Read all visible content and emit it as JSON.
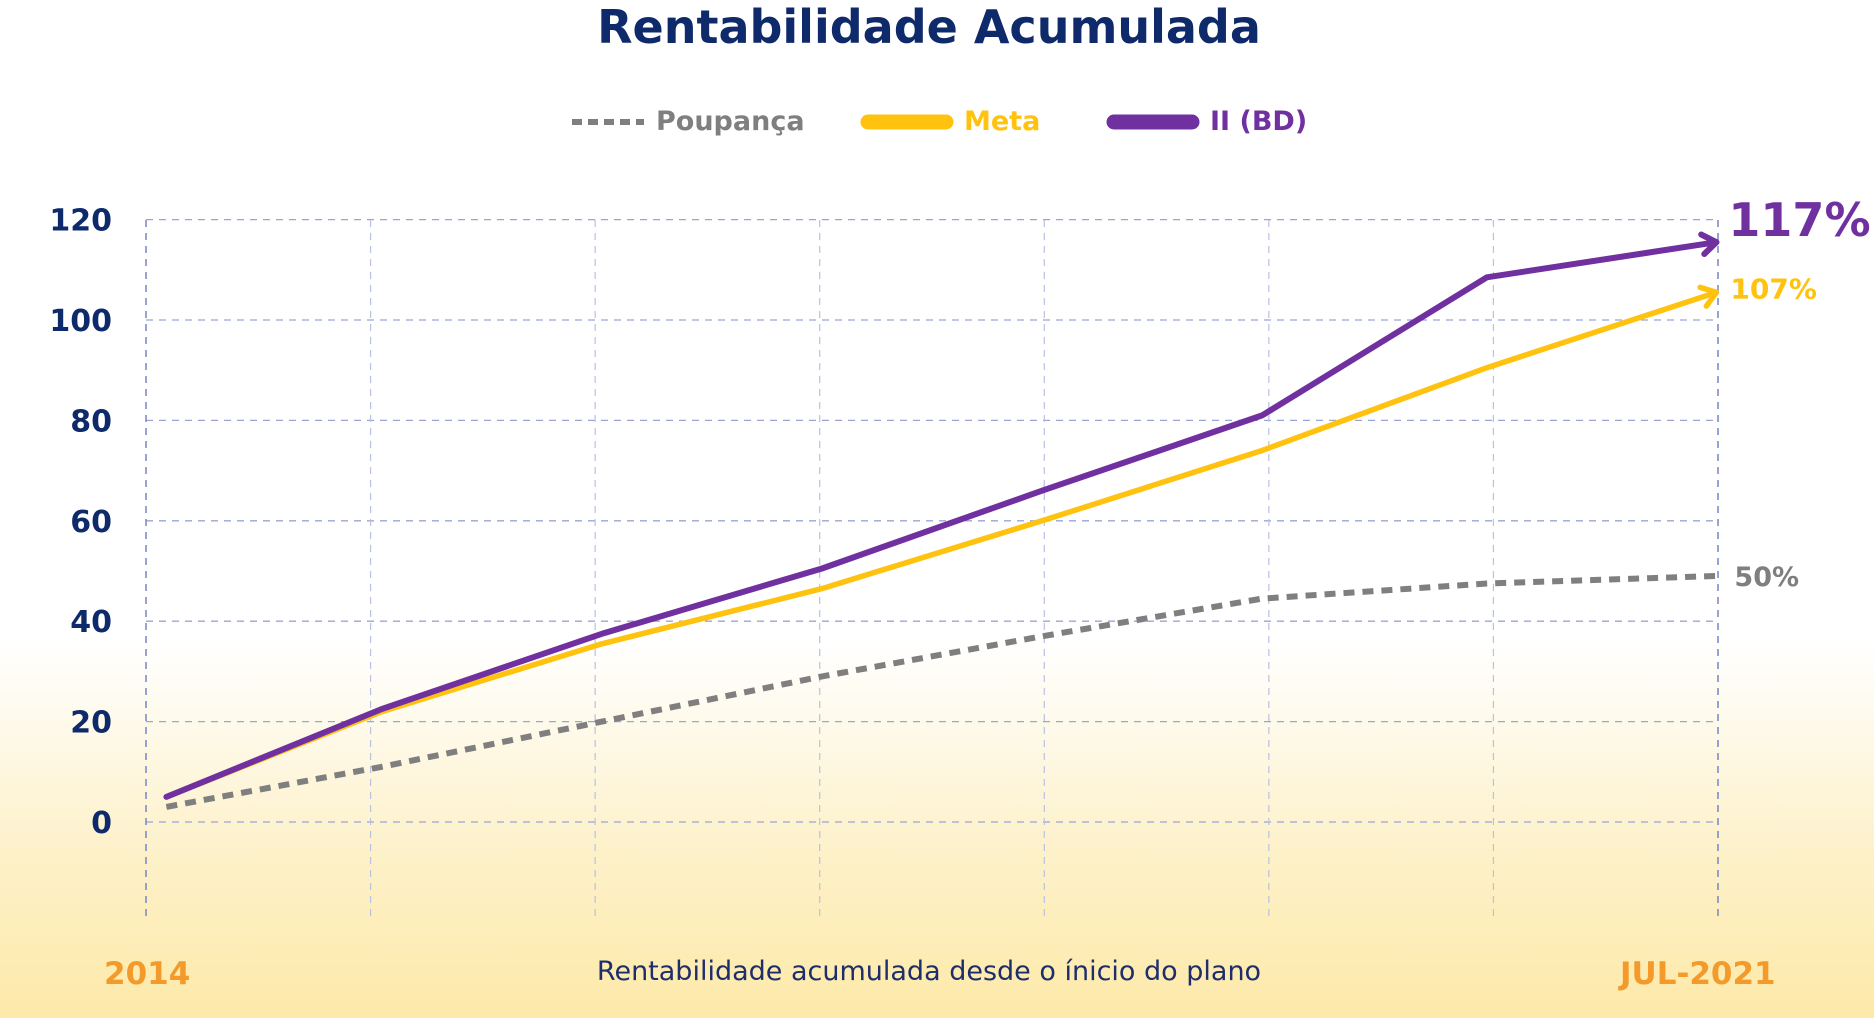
{
  "title": "Rentabilidade Acumulada",
  "caption": "Rentabilidade acumulada desde o ínicio do plano",
  "colors": {
    "poupanca": "#7f7f7f",
    "meta": "#ffc20e",
    "ii": "#7030a0",
    "axis_labels": "#0e2a6b",
    "category_labels": "#f39a2b",
    "grid": "#9aa5d6"
  },
  "chart_data": {
    "type": "line",
    "title": "Rentabilidade Acumulada",
    "xlabel": "Rentabilidade acumulada desde o ínicio do plano",
    "ylabel": "",
    "ylim": [
      -20,
      120
    ],
    "yticks": [
      0,
      20,
      40,
      60,
      80,
      100,
      120
    ],
    "x_start_label": "2014",
    "x_end_label": "JUL-2021",
    "grid": true,
    "legend_position": "top-center",
    "x": [
      0.013,
      0.15,
      0.29,
      0.43,
      0.57,
      0.71,
      0.853,
      0.999
    ],
    "series": [
      {
        "name": "Poupança",
        "style": "dashed",
        "values": [
          3,
          11,
          20,
          29,
          37,
          44.5,
          47.5,
          49
        ],
        "end_label": "50%"
      },
      {
        "name": "Meta",
        "style": "solid",
        "values": [
          5,
          22,
          35.5,
          46.5,
          60,
          74,
          90.5,
          105.5
        ],
        "end_label": "107%"
      },
      {
        "name": "II (BD)",
        "style": "solid",
        "values": [
          5,
          22.5,
          37.5,
          50.5,
          66,
          81,
          108.5,
          115.5
        ],
        "end_label": "117%"
      }
    ]
  }
}
